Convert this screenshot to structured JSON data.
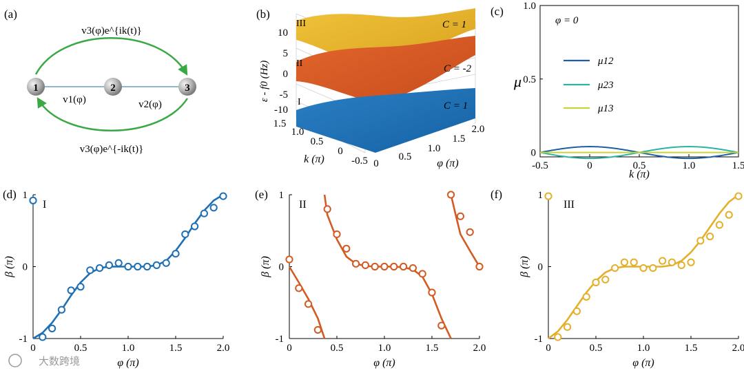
{
  "watermark": "大数跨境",
  "panel_a": {
    "label": "(a)",
    "nodes": [
      "1",
      "2",
      "3"
    ],
    "top_arrow_label": "v3(φ)e^{ik(t)}",
    "bottom_arrow_label": "v3(φ)e^{-ik(t)}",
    "edge_12": "v1(φ)",
    "edge_23": "v2(φ)",
    "arrow_color": "#3aa845",
    "node_color": "#b0b0b0"
  },
  "panel_b": {
    "label": "(b)",
    "zlabel": "ε - f0 (Hz)",
    "xlabel": "k (π)",
    "ylabel": "φ (π)",
    "z_ticks": [
      "10",
      "5",
      "0",
      "-5",
      "-10"
    ],
    "k_ticks": [
      "1.5",
      "1.0",
      "0.5",
      "0",
      "-0.5"
    ],
    "phi_ticks": [
      "0",
      "0.5",
      "1.0",
      "1.5",
      "2.0"
    ],
    "bands": [
      {
        "name": "III",
        "chern": "C = 1",
        "color": "#e8b52c"
      },
      {
        "name": "II",
        "chern": "C = -2",
        "color": "#d85a26"
      },
      {
        "name": "I",
        "chern": "C = 1",
        "color": "#1f73b7"
      }
    ]
  },
  "chart_data": [
    {
      "panel": "(c)",
      "type": "line",
      "title": "φ = 0",
      "xlabel": "k (π)",
      "ylabel": "μ",
      "xlim": [
        -0.5,
        1.5
      ],
      "ylim": [
        -0.03,
        1.0
      ],
      "xticks": [
        -0.5,
        0,
        0.5,
        1.0,
        1.5
      ],
      "xtick_labels": [
        "-0.5",
        "0",
        "0.5",
        "1.0",
        "1.5"
      ],
      "yticks": [
        0,
        0.5,
        1.0
      ],
      "ytick_labels": [
        "0",
        "0.5",
        "1.0"
      ],
      "legend_position": "middle-left",
      "series": [
        {
          "name": "μ12",
          "color": "#1c5fa6",
          "amplitude": 0.04,
          "period": 2.0
        },
        {
          "name": "μ23",
          "color": "#2ab3a4",
          "amplitude": -0.04,
          "period": 2.0
        },
        {
          "name": "μ13",
          "color": "#c9d33a",
          "amplitude": 0.0,
          "period": 2.0
        }
      ]
    },
    {
      "panel": "(d)",
      "type": "scatter",
      "band": "I",
      "color": "#1f6fb4",
      "xlabel": "φ (π)",
      "ylabel": "β (π)",
      "xlim": [
        0,
        2.0
      ],
      "ylim": [
        -1,
        1
      ],
      "xticks": [
        0,
        0.5,
        1.0,
        1.5,
        2.0
      ],
      "xtick_labels": [
        "0",
        "0.5",
        "1.0",
        "1.5",
        "2.0"
      ],
      "yticks": [
        -1,
        0,
        1
      ],
      "ytick_labels": [
        "-1",
        "0",
        "1"
      ],
      "line": {
        "x": [
          0,
          0.1,
          0.2,
          0.3,
          0.4,
          0.5,
          0.6,
          0.7,
          0.8,
          0.9,
          1.0,
          1.1,
          1.2,
          1.3,
          1.4,
          1.5,
          1.6,
          1.7,
          1.8,
          1.9,
          2.0
        ],
        "y": [
          -1,
          -0.92,
          -0.78,
          -0.6,
          -0.4,
          -0.22,
          -0.09,
          -0.02,
          0.0,
          0.0,
          0.0,
          0.0,
          0.0,
          0.02,
          0.08,
          0.22,
          0.4,
          0.6,
          0.78,
          0.92,
          1.0
        ]
      },
      "points": {
        "x": [
          0,
          0.1,
          0.2,
          0.3,
          0.4,
          0.5,
          0.6,
          0.7,
          0.8,
          0.9,
          1.0,
          1.1,
          1.2,
          1.3,
          1.4,
          1.5,
          1.6,
          1.7,
          1.8,
          1.9,
          2.0
        ],
        "y": [
          0.92,
          -0.98,
          -0.86,
          -0.6,
          -0.33,
          -0.28,
          -0.05,
          -0.02,
          0.02,
          0.05,
          0.0,
          0.0,
          0.0,
          0.02,
          0.05,
          0.18,
          0.45,
          0.56,
          0.74,
          0.82,
          0.98
        ]
      }
    },
    {
      "panel": "(e)",
      "type": "scatter",
      "band": "II",
      "color": "#d35a22",
      "xlabel": "φ (π)",
      "ylabel": "β (π)",
      "xlim": [
        0,
        2.0
      ],
      "ylim": [
        -1,
        1
      ],
      "xticks": [
        0,
        0.5,
        1.0,
        1.5,
        2.0
      ],
      "xtick_labels": [
        "0",
        "0.5",
        "1.0",
        "1.5",
        "2.0"
      ],
      "yticks": [
        -1,
        0,
        1
      ],
      "ytick_labels": [
        "-1",
        "0",
        "1"
      ],
      "line_segments": [
        {
          "x": [
            0,
            0.1,
            0.2,
            0.3,
            0.37
          ],
          "y": [
            0.0,
            -0.22,
            -0.45,
            -0.72,
            -1.0
          ]
        },
        {
          "x": [
            0.37,
            0.4,
            0.5,
            0.6,
            0.7,
            0.8,
            0.9,
            1.0,
            1.1,
            1.2,
            1.3,
            1.4,
            1.5,
            1.6,
            1.7
          ],
          "y": [
            1.0,
            0.72,
            0.38,
            0.14,
            0.04,
            0.01,
            0.0,
            0.0,
            0.0,
            -0.01,
            -0.04,
            -0.14,
            -0.38,
            -0.72,
            -1.0
          ]
        },
        {
          "x": [
            1.7,
            1.75,
            1.8,
            1.9,
            2.0
          ],
          "y": [
            1.0,
            0.72,
            0.45,
            0.22,
            0.0
          ]
        }
      ],
      "points": {
        "x": [
          0,
          0.1,
          0.2,
          0.3,
          0.4,
          0.5,
          0.6,
          0.7,
          0.8,
          0.9,
          1.0,
          1.1,
          1.2,
          1.3,
          1.4,
          1.5,
          1.6,
          1.7,
          1.8,
          1.9,
          2.0
        ],
        "y": [
          0.1,
          -0.3,
          -0.52,
          -0.88,
          0.8,
          0.45,
          0.25,
          0.04,
          0.02,
          0.0,
          0.0,
          0.0,
          0.0,
          -0.02,
          -0.1,
          -0.36,
          -0.82,
          1.0,
          0.7,
          0.48,
          0.0
        ]
      }
    },
    {
      "panel": "(f)",
      "type": "scatter",
      "band": "III",
      "color": "#e4b02c",
      "xlabel": "φ (π)",
      "ylabel": "β (π)",
      "xlim": [
        0,
        2.0
      ],
      "ylim": [
        -1,
        1
      ],
      "xticks": [
        0,
        0.5,
        1.0,
        1.5,
        2.0
      ],
      "xtick_labels": [
        "0",
        "0.5",
        "1.0",
        "1.5",
        "2.0"
      ],
      "yticks": [
        -1,
        0,
        1
      ],
      "ytick_labels": [
        "-1",
        "0",
        "1"
      ],
      "line": {
        "x": [
          0,
          0.1,
          0.2,
          0.3,
          0.4,
          0.5,
          0.6,
          0.7,
          0.8,
          0.9,
          1.0,
          1.1,
          1.2,
          1.3,
          1.4,
          1.5,
          1.6,
          1.7,
          1.8,
          1.9,
          2.0
        ],
        "y": [
          -1,
          -0.9,
          -0.74,
          -0.55,
          -0.36,
          -0.2,
          -0.08,
          -0.02,
          0.0,
          0.0,
          0.0,
          0.0,
          0.0,
          0.02,
          0.08,
          0.2,
          0.36,
          0.55,
          0.74,
          0.9,
          1.0
        ]
      },
      "points": {
        "x": [
          0,
          0.1,
          0.2,
          0.3,
          0.4,
          0.5,
          0.6,
          0.7,
          0.8,
          0.9,
          1.0,
          1.1,
          1.2,
          1.3,
          1.4,
          1.5,
          1.6,
          1.7,
          1.8,
          1.9,
          2.0
        ],
        "y": [
          0.98,
          -0.98,
          -0.84,
          -0.62,
          -0.42,
          -0.22,
          -0.18,
          -0.02,
          0.06,
          0.06,
          -0.02,
          -0.02,
          0.08,
          0.06,
          0.02,
          0.06,
          0.36,
          0.42,
          0.58,
          0.72,
          0.98
        ]
      }
    }
  ],
  "panel_labels": {
    "c": "(c)",
    "d": "(d)",
    "e": "(e)",
    "f": "(f)"
  },
  "band_labels": {
    "d": "I",
    "e": "II",
    "f": "III"
  }
}
